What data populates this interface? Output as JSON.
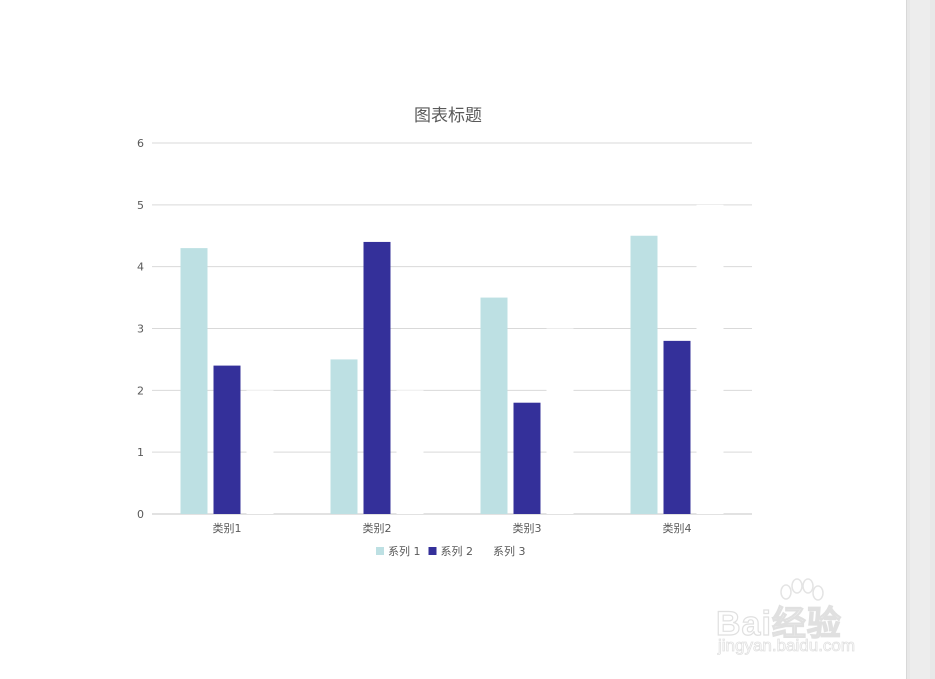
{
  "chart_data": {
    "type": "bar",
    "title": "图表标题",
    "categories": [
      "类别1",
      "类别2",
      "类别3",
      "类别4"
    ],
    "series": [
      {
        "name": "系列 1",
        "values": [
          4.3,
          2.5,
          3.5,
          4.5
        ],
        "color": "#bde0e3"
      },
      {
        "name": "系列 2",
        "values": [
          2.4,
          4.4,
          1.8,
          2.8
        ],
        "color": "#34309a"
      },
      {
        "name": "系列 3",
        "values": [
          2,
          2,
          3,
          5
        ],
        "color": "#ffffff"
      }
    ],
    "ylim": [
      0,
      6
    ],
    "yticks": [
      0,
      1,
      2,
      3,
      4,
      5,
      6
    ],
    "grid": true,
    "legend_position": "bottom"
  },
  "watermark": {
    "brand": "Bai经验",
    "url": "jingyan.baidu.com"
  },
  "colors": {
    "gridline": "#d9d9d9",
    "axis_text": "#595959",
    "title_text": "#595959"
  }
}
